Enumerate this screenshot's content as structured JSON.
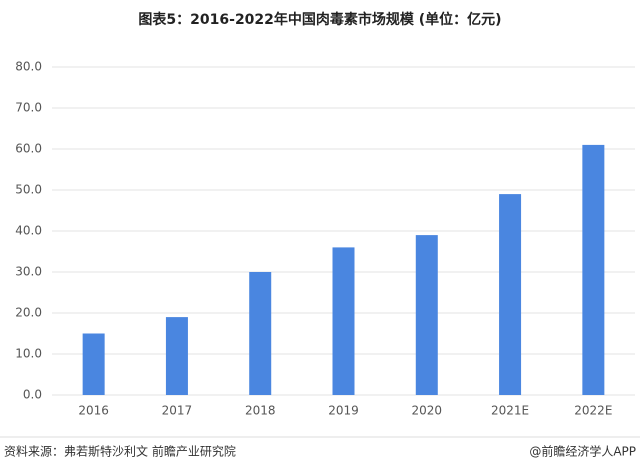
{
  "chart_data": {
    "type": "bar",
    "title": "图表5：2016-2022年中国肉毒素市场规模 (单位：亿元)",
    "categories": [
      "2016",
      "2017",
      "2018",
      "2019",
      "2020",
      "2021E",
      "2022E"
    ],
    "values": [
      15,
      19,
      30,
      36,
      39,
      49,
      61
    ],
    "color": "#4a86e0",
    "ylim": [
      0,
      80
    ],
    "yticks": [
      {
        "value": 0,
        "label": "0.0"
      },
      {
        "value": 10,
        "label": "10.0"
      },
      {
        "value": 20,
        "label": "20.0"
      },
      {
        "value": 30,
        "label": "30.0"
      },
      {
        "value": 40,
        "label": "40.0"
      },
      {
        "value": 50,
        "label": "50.0"
      },
      {
        "value": 60,
        "label": "60.0"
      },
      {
        "value": 70,
        "label": "70.0"
      },
      {
        "value": 80,
        "label": "80.0"
      }
    ],
    "grid": true,
    "source": "资料来源：弗若斯特沙利文 前瞻产业研究院",
    "credit": "@前瞻经济学人APP"
  }
}
